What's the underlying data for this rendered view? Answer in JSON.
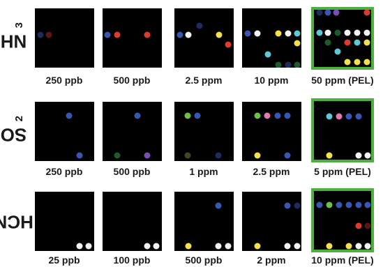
{
  "colors": {
    "background": "#000000",
    "pel_border": "#4caf3e",
    "dot_colors": {
      "navy": "#1c2c5e",
      "dark_red": "#5a1616",
      "blue": "#3a56b4",
      "red": "#e03a30",
      "white": "#f4f4f4",
      "yellow": "#f2e24a",
      "cyan": "#5ec8d6",
      "dark_green": "#1f5a2e",
      "purple": "#7a4cb8",
      "pink": "#e07ab0",
      "green": "#6cc04a",
      "olive": "#3a4a1e",
      "light_yellow": "#f0e88a"
    }
  },
  "rows": [
    {
      "gas_label": "NH",
      "gas_subscript": "3",
      "panels": [
        {
          "caption": "250 ppb",
          "pel": false
        },
        {
          "caption": "500 ppb",
          "pel": false
        },
        {
          "caption": "2.5 ppm",
          "pel": false
        },
        {
          "caption": "10 ppm",
          "pel": false
        },
        {
          "caption": "50 ppm (PEL)",
          "pel": true
        }
      ]
    },
    {
      "gas_label": "SO",
      "gas_subscript": "2",
      "panels": [
        {
          "caption": "250 ppb",
          "pel": false
        },
        {
          "caption": "500 ppb",
          "pel": false
        },
        {
          "caption": "1 ppm",
          "pel": false
        },
        {
          "caption": "2.5 ppm",
          "pel": false
        },
        {
          "caption": "5 ppm (PEL)",
          "pel": true
        }
      ]
    },
    {
      "gas_label": "HCN",
      "gas_subscript": "",
      "panels": [
        {
          "caption": "25 ppb",
          "pel": false
        },
        {
          "caption": "100 ppb",
          "pel": false
        },
        {
          "caption": "500 ppb",
          "pel": false
        },
        {
          "caption": "2 ppm",
          "pel": false
        },
        {
          "caption": "10 ppm (PEL)",
          "pel": true
        }
      ]
    }
  ]
}
